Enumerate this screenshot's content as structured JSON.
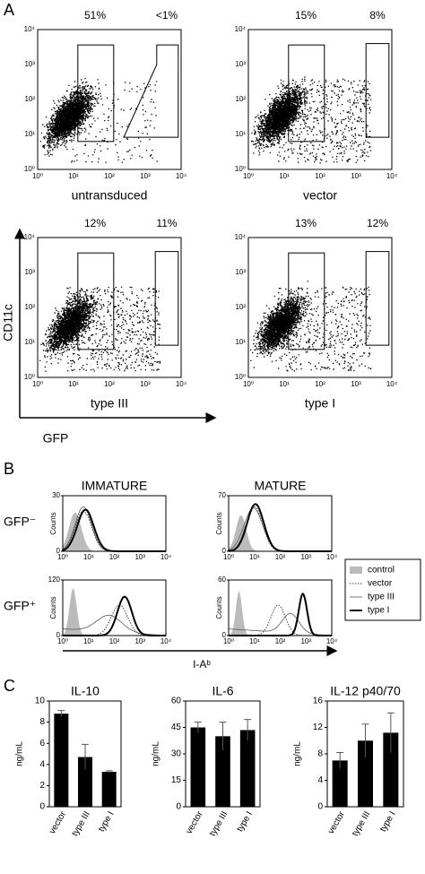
{
  "panel_labels": [
    "A",
    "B",
    "C"
  ],
  "panel_a": {
    "plots": [
      {
        "label": "untransduced",
        "gates": [
          "51%",
          "<1%"
        ]
      },
      {
        "label": "vector",
        "gates": [
          "15%",
          "8%"
        ]
      },
      {
        "label": "type III",
        "gates": [
          "12%",
          "11%"
        ]
      },
      {
        "label": "type I",
        "gates": [
          "13%",
          "12%"
        ]
      }
    ],
    "ticks": [
      "10⁰",
      "10¹",
      "10²",
      "10³",
      "10⁴"
    ],
    "y_axis": "CD11c",
    "x_axis": "GFP"
  },
  "panel_b": {
    "columns": [
      "IMMATURE",
      "MATURE"
    ],
    "rows": [
      "GFP⁻",
      "GFP⁺"
    ],
    "y_label": "Counts",
    "plots": [
      {
        "yticks": [
          0,
          30
        ]
      },
      {
        "yticks": [
          0,
          70
        ]
      },
      {
        "yticks": [
          0,
          120
        ]
      },
      {
        "yticks": [
          0,
          60
        ]
      }
    ],
    "ticks": [
      "10⁰",
      "10¹",
      "10²",
      "10³",
      "10⁴"
    ],
    "legend": [
      "control",
      "vector",
      "type III",
      "type I"
    ],
    "x_axis": "I-Aᵇ"
  },
  "chart_data": [
    {
      "type": "bar",
      "title": "IL-10",
      "y_label": "ng/mL",
      "categories": [
        "vector",
        "type III",
        "type I"
      ],
      "values": [
        8.8,
        4.7,
        3.3
      ],
      "errors": [
        0.3,
        1.2,
        0.1
      ],
      "color": "#000000",
      "ylim": [
        0,
        10
      ],
      "yticks": [
        0,
        2,
        4,
        6,
        8,
        10
      ]
    },
    {
      "type": "bar",
      "title": "IL-6",
      "y_label": "ng/mL",
      "categories": [
        "vector",
        "type III",
        "type I"
      ],
      "values": [
        45,
        40,
        43.5
      ],
      "errors": [
        3,
        8,
        6
      ],
      "color": "#000000",
      "ylim": [
        0,
        60
      ],
      "yticks": [
        0,
        15,
        30,
        45,
        60
      ]
    },
    {
      "type": "bar",
      "title": "IL-12 p40/70",
      "y_label": "ng/mL",
      "categories": [
        "vector",
        "type III",
        "type I"
      ],
      "values": [
        7,
        10,
        11.2
      ],
      "errors": [
        1.2,
        2.5,
        3
      ],
      "color": "#000000",
      "ylim": [
        0,
        16
      ],
      "yticks": [
        0,
        4,
        8,
        12,
        16
      ]
    }
  ]
}
